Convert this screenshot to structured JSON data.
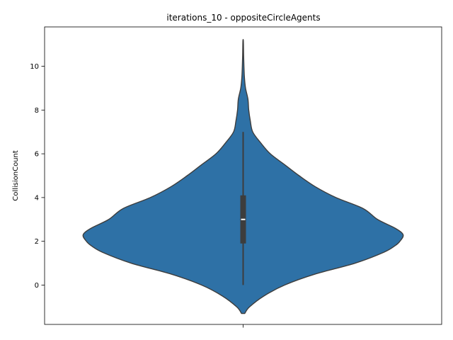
{
  "chart_data": {
    "type": "violin",
    "title": "iterations_10 - oppositeCircleAgents",
    "xlabel": "",
    "ylabel": "CollisionCount",
    "ylim": [
      -1.8,
      11.8
    ],
    "yticks": [
      0,
      2,
      4,
      6,
      8,
      10
    ],
    "grid": false,
    "legend": "none",
    "colors": {
      "violin_fill": "#2e71a6",
      "violin_edge": "#3d3d3d",
      "box": "#3d3d3d",
      "median": "#ffffff"
    },
    "series": [
      {
        "quartiles": {
          "q1": 1.9,
          "median": 3.0,
          "q3": 4.1
        },
        "whiskers": [
          0,
          7
        ],
        "density": [
          [
            -1.3,
            0.01
          ],
          [
            -1.0,
            0.04
          ],
          [
            -0.5,
            0.13
          ],
          [
            0.0,
            0.26
          ],
          [
            0.5,
            0.45
          ],
          [
            1.0,
            0.7
          ],
          [
            1.5,
            0.88
          ],
          [
            1.8,
            0.95
          ],
          [
            2.0,
            0.98
          ],
          [
            2.3,
            1.0
          ],
          [
            2.6,
            0.95
          ],
          [
            3.0,
            0.84
          ],
          [
            3.5,
            0.75
          ],
          [
            4.0,
            0.58
          ],
          [
            4.5,
            0.45
          ],
          [
            5.0,
            0.35
          ],
          [
            5.5,
            0.26
          ],
          [
            6.0,
            0.17
          ],
          [
            6.5,
            0.11
          ],
          [
            7.0,
            0.06
          ],
          [
            7.5,
            0.045
          ],
          [
            8.0,
            0.035
          ],
          [
            8.5,
            0.03
          ],
          [
            9.0,
            0.015
          ],
          [
            9.5,
            0.008
          ],
          [
            10.0,
            0.005
          ],
          [
            10.5,
            0.003
          ],
          [
            11.0,
            0.002
          ],
          [
            11.2,
            0.001
          ]
        ]
      }
    ]
  }
}
